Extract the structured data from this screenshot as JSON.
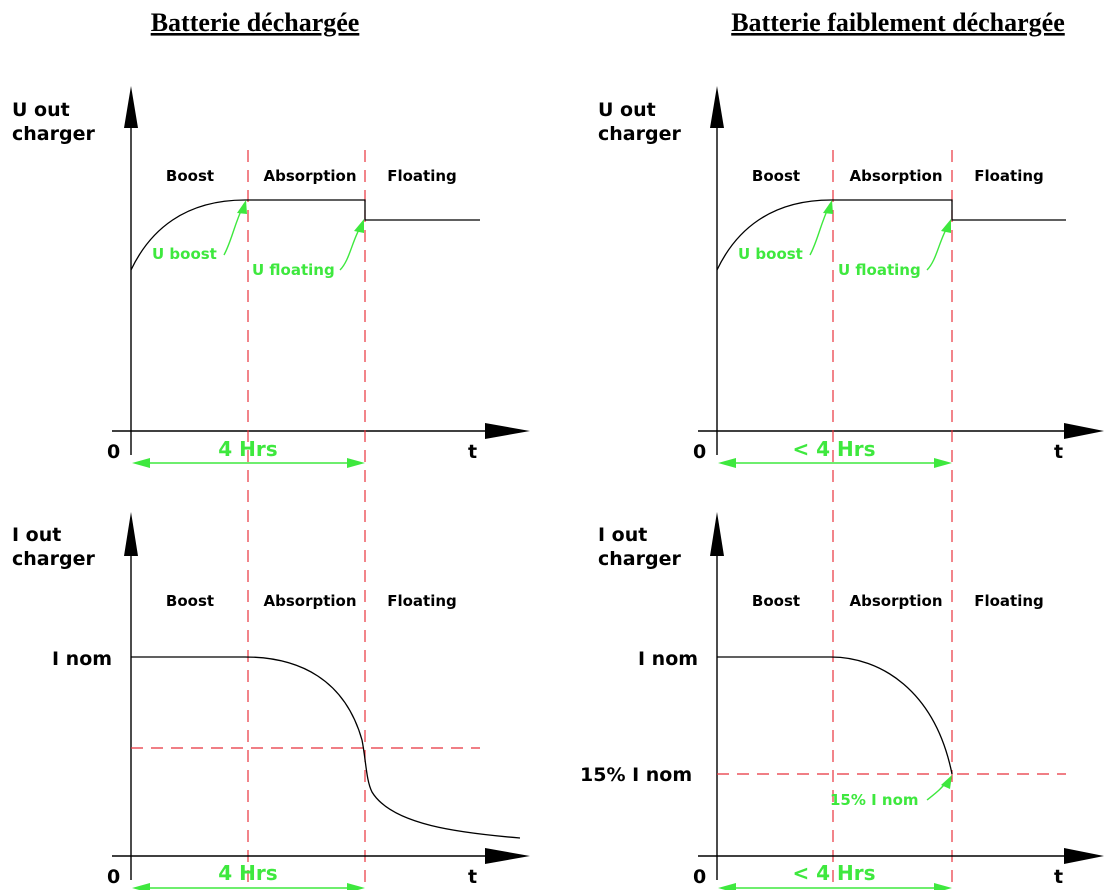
{
  "titles": {
    "left": "Batterie déchargée",
    "right": "Batterie faiblement déchargée"
  },
  "phases": {
    "boost": "Boost",
    "absorption": "Absorption",
    "floating": "Floating"
  },
  "axes": {
    "voltage_label_line1": "U out",
    "voltage_label_line2": "charger",
    "current_label_line1": "I out",
    "current_label_line2": "charger",
    "origin": "0",
    "time": "t"
  },
  "annotations": {
    "u_boost": "U boost",
    "u_floating": "U floating",
    "i_nom": "I nom",
    "pct_i_nom": "15% I nom",
    "pct_i_nom_callout": "15% I nom"
  },
  "durations": {
    "left": "4 Hrs",
    "right": "< 4 Hrs"
  },
  "colors": {
    "annotation_green": "#3ee83e",
    "phase_divider_red": "#e8323c",
    "curve_black": "#000000"
  }
}
